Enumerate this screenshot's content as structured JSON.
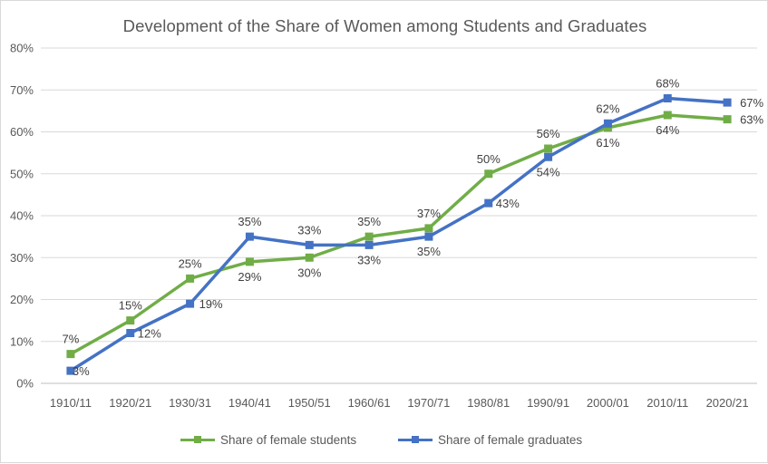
{
  "chart_data": {
    "type": "line",
    "title": "Development of the Share of Women among Students and Graduates",
    "categories": [
      "1910/11",
      "1920/21",
      "1930/31",
      "1940/41",
      "1950/51",
      "1960/61",
      "1970/71",
      "1980/81",
      "1990/91",
      "2000/01",
      "2010/11",
      "2020/21"
    ],
    "series": [
      {
        "name": "Share of female students",
        "color": "#70ad47",
        "values": [
          7,
          15,
          25,
          29,
          30,
          35,
          37,
          50,
          56,
          61,
          64,
          63
        ],
        "labels": [
          "7%",
          "15%",
          "25%",
          "29%",
          "30%",
          "35%",
          "37%",
          "50%",
          "56%",
          "61%",
          "64%",
          "63%"
        ]
      },
      {
        "name": "Share of female graduates",
        "color": "#4472c4",
        "values": [
          3,
          12,
          19,
          35,
          33,
          33,
          35,
          43,
          54,
          62,
          68,
          67
        ],
        "labels": [
          "3%",
          "12%",
          "19%",
          "35%",
          "33%",
          "33%",
          "35%",
          "43%",
          "54%",
          "62%",
          "68%",
          "67%"
        ]
      }
    ],
    "y_ticks": [
      "0%",
      "10%",
      "20%",
      "30%",
      "40%",
      "50%",
      "60%",
      "70%",
      "80%"
    ],
    "ylim": [
      0,
      80
    ],
    "ylabel": "",
    "xlabel": "",
    "grid": true,
    "legend_position": "bottom"
  }
}
